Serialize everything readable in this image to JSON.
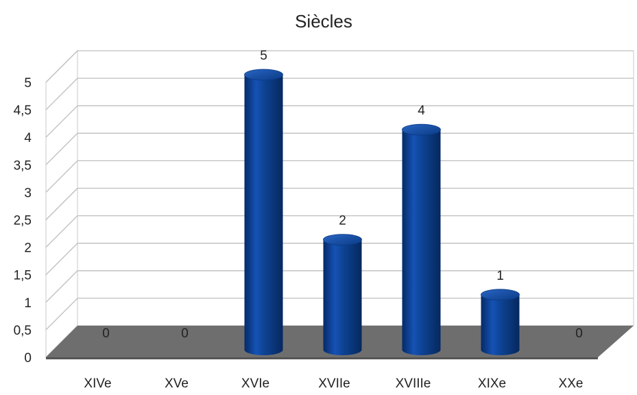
{
  "chart_data": {
    "type": "bar",
    "title": "Siècles",
    "xlabel": "",
    "ylabel": "",
    "categories": [
      "XIVe",
      "XVe",
      "XVIe",
      "XVIIe",
      "XVIIIe",
      "XIXe",
      "XXe"
    ],
    "values": [
      0,
      0,
      5,
      2,
      4,
      1,
      0
    ],
    "value_labels": [
      "0",
      "0",
      "5",
      "2",
      "4",
      "1",
      "0"
    ],
    "yticks": [
      "0",
      "0,5",
      "1",
      "1,5",
      "2",
      "2,5",
      "3",
      "3,5",
      "4",
      "4,5",
      "5"
    ],
    "ylim": [
      0,
      5
    ],
    "grid": true,
    "legend": "none",
    "style": "3d-cylinder",
    "bar_color": "#0b3f8f",
    "floor_color": "#6e6e6e"
  }
}
